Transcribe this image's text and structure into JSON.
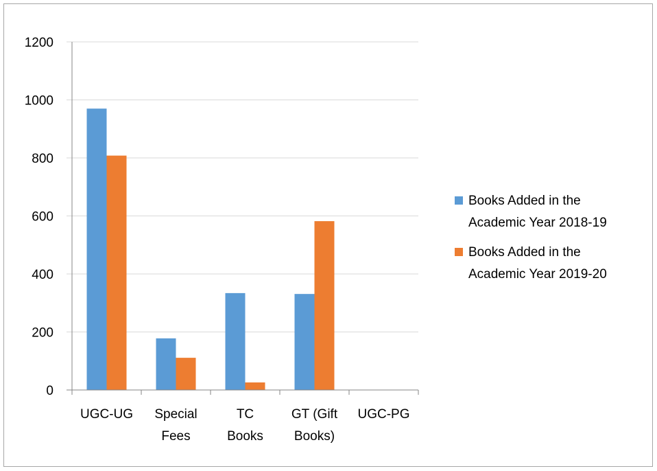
{
  "chart_data": {
    "type": "bar",
    "categories": [
      "UGC-UG",
      "Special\nFees",
      "TC\nBooks",
      "GT (Gift\nBooks)",
      "UGC-PG"
    ],
    "series": [
      {
        "name": "Books Added in the\nAcademic Year 2018-19",
        "color": "#5b9bd5",
        "values": [
          970,
          178,
          334,
          331,
          0
        ]
      },
      {
        "name": "Books Added in the\nAcademic Year 2019-20",
        "color": "#ed7d31",
        "values": [
          808,
          111,
          26,
          582,
          0
        ]
      }
    ],
    "ylim": [
      0,
      1200
    ],
    "yticks": [
      0,
      200,
      400,
      600,
      800,
      1000,
      1200
    ],
    "grid": true,
    "legend": "right"
  }
}
